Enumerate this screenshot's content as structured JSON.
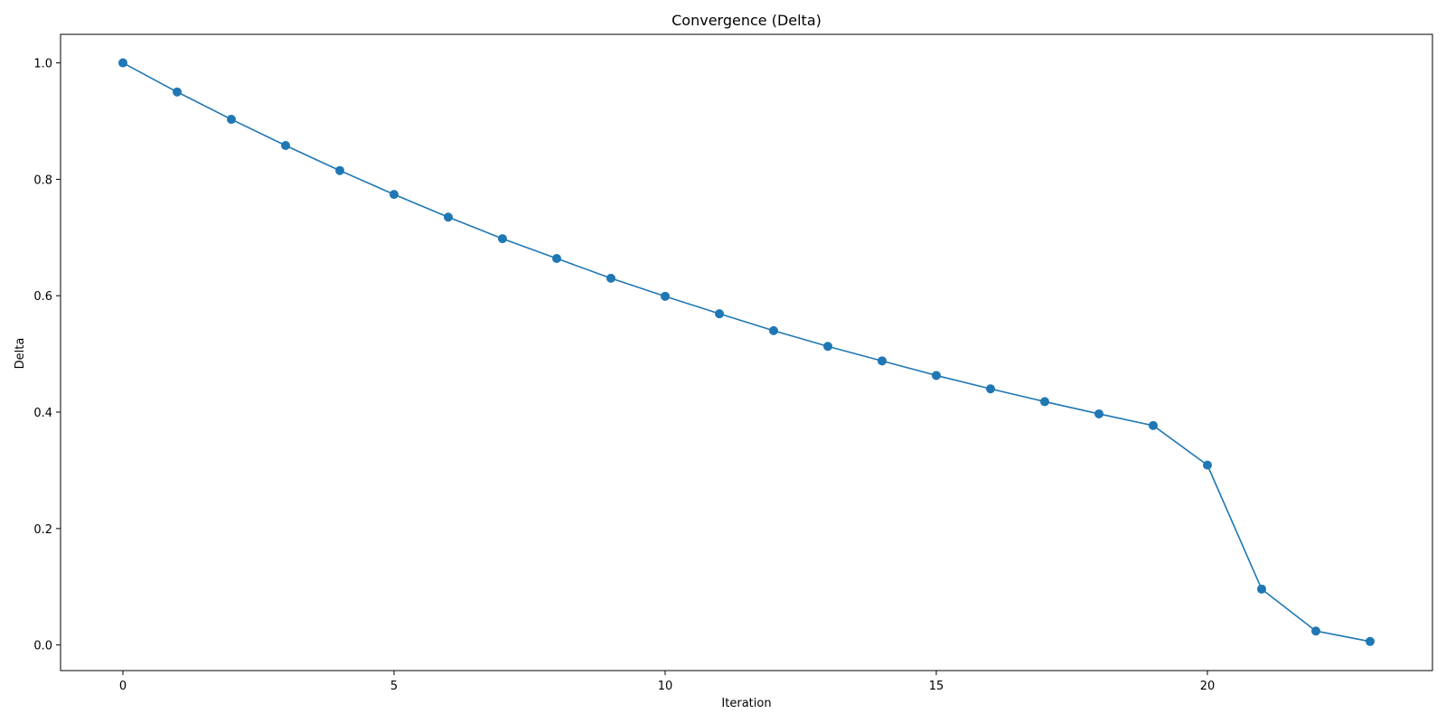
{
  "chart_data": {
    "type": "line",
    "title": "Convergence (Delta)",
    "xlabel": "Iteration",
    "ylabel": "Delta",
    "xlim": [
      -1.15,
      24.15
    ],
    "ylim": [
      -0.044,
      1.049
    ],
    "x_ticks": [
      0,
      5,
      10,
      15,
      20
    ],
    "x_tick_labels": [
      "0",
      "5",
      "10",
      "15",
      "20"
    ],
    "y_ticks": [
      0.0,
      0.2,
      0.4,
      0.6,
      0.8,
      1.0
    ],
    "y_tick_labels": [
      "0.0",
      "0.2",
      "0.4",
      "0.6",
      "0.8",
      "1.0"
    ],
    "grid": false,
    "markers": true,
    "series": [
      {
        "color": "#1f77b4",
        "x": [
          0,
          1,
          2,
          3,
          4,
          5,
          6,
          7,
          8,
          9,
          10,
          11,
          12,
          13,
          14,
          15,
          16,
          17,
          18,
          19,
          20,
          21,
          22,
          23
        ],
        "values": [
          1.0,
          0.95,
          0.903,
          0.858,
          0.815,
          0.774,
          0.735,
          0.698,
          0.664,
          0.63,
          0.599,
          0.569,
          0.54,
          0.513,
          0.488,
          0.463,
          0.44,
          0.418,
          0.397,
          0.377,
          0.309,
          0.096,
          0.024,
          0.006
        ]
      }
    ]
  }
}
